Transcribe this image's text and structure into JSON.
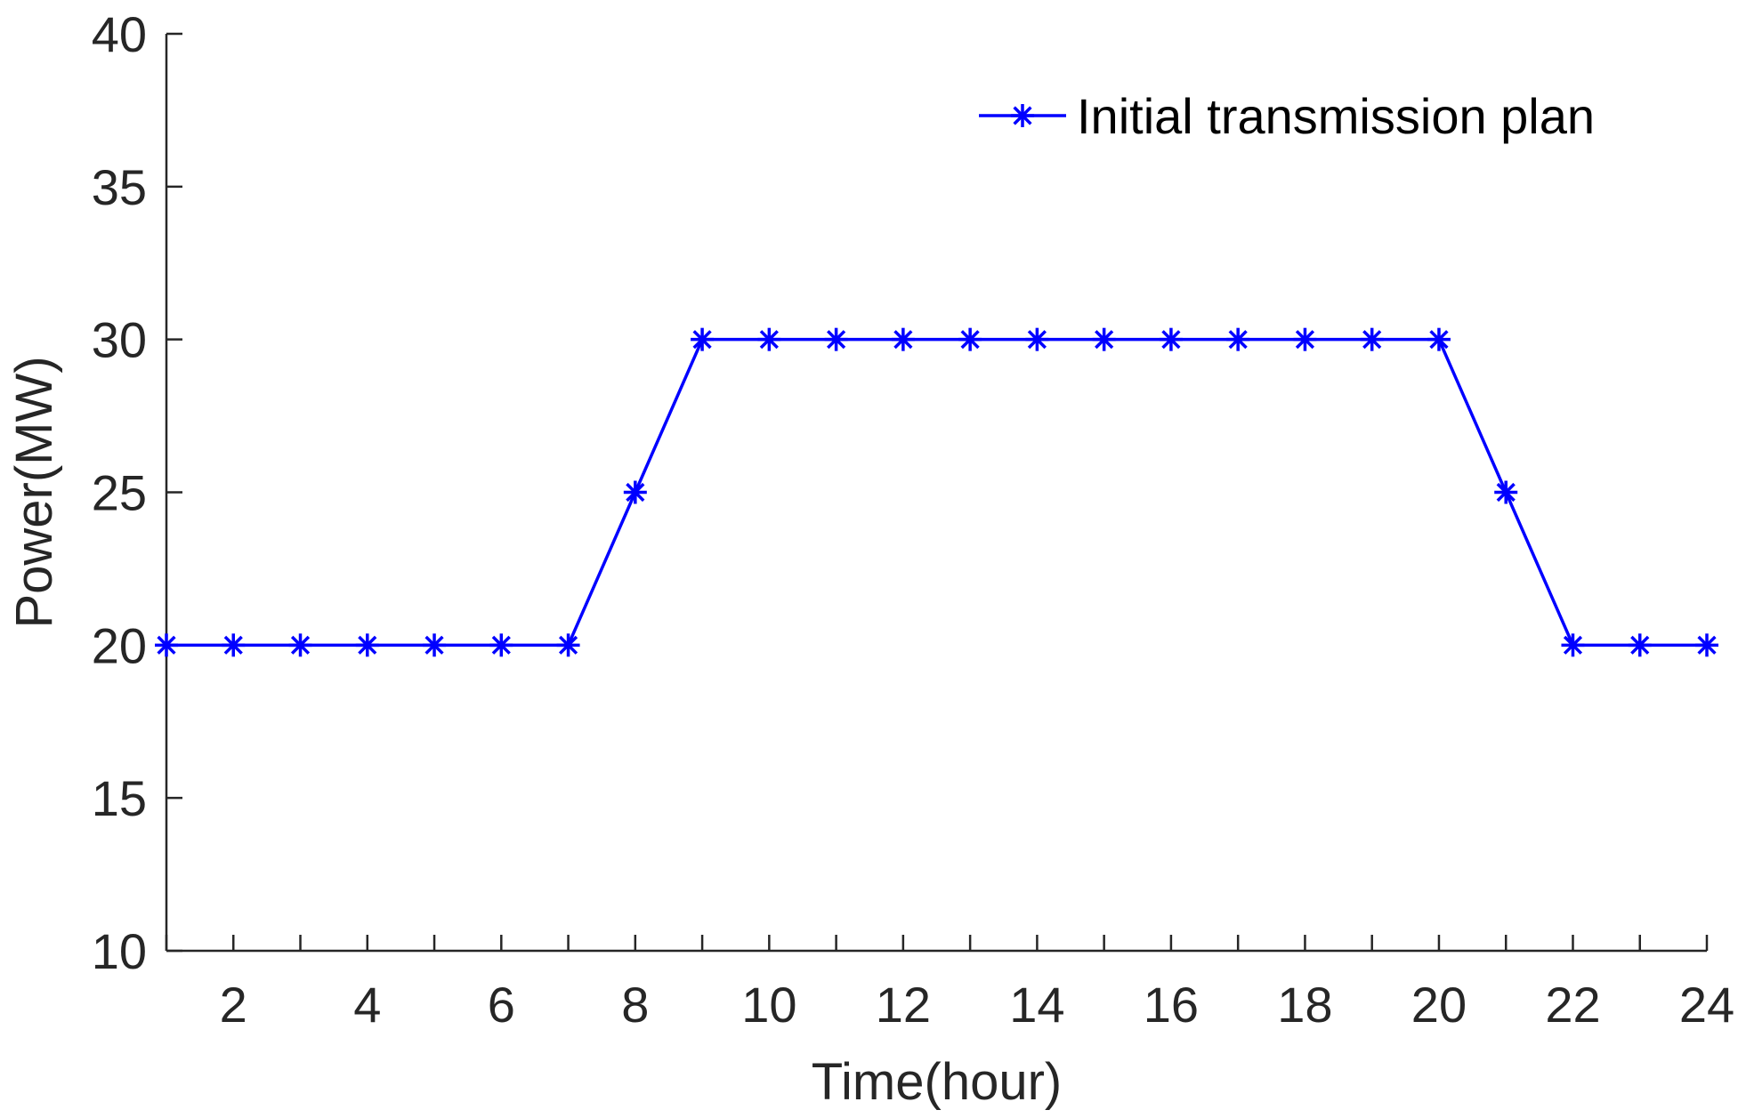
{
  "chart_data": {
    "type": "line",
    "title": "",
    "xlabel": "Time(hour)",
    "ylabel": "Power(MW)",
    "xlim": [
      1,
      24
    ],
    "ylim": [
      10,
      40
    ],
    "xticks": [
      2,
      4,
      6,
      8,
      10,
      12,
      14,
      16,
      18,
      20,
      22,
      24
    ],
    "yticks": [
      10,
      15,
      20,
      25,
      30,
      35,
      40
    ],
    "grid": false,
    "legend_position": "top-right",
    "x": [
      1,
      2,
      3,
      4,
      5,
      6,
      7,
      8,
      9,
      10,
      11,
      12,
      13,
      14,
      15,
      16,
      17,
      18,
      19,
      20,
      21,
      22,
      23,
      24
    ],
    "series": [
      {
        "name": "Initial transmission plan",
        "color": "#0000ff",
        "marker": "asterisk",
        "values": [
          20,
          20,
          20,
          20,
          20,
          20,
          20,
          25,
          30,
          30,
          30,
          30,
          30,
          30,
          30,
          30,
          30,
          30,
          30,
          30,
          25,
          20,
          20,
          20
        ]
      }
    ]
  }
}
